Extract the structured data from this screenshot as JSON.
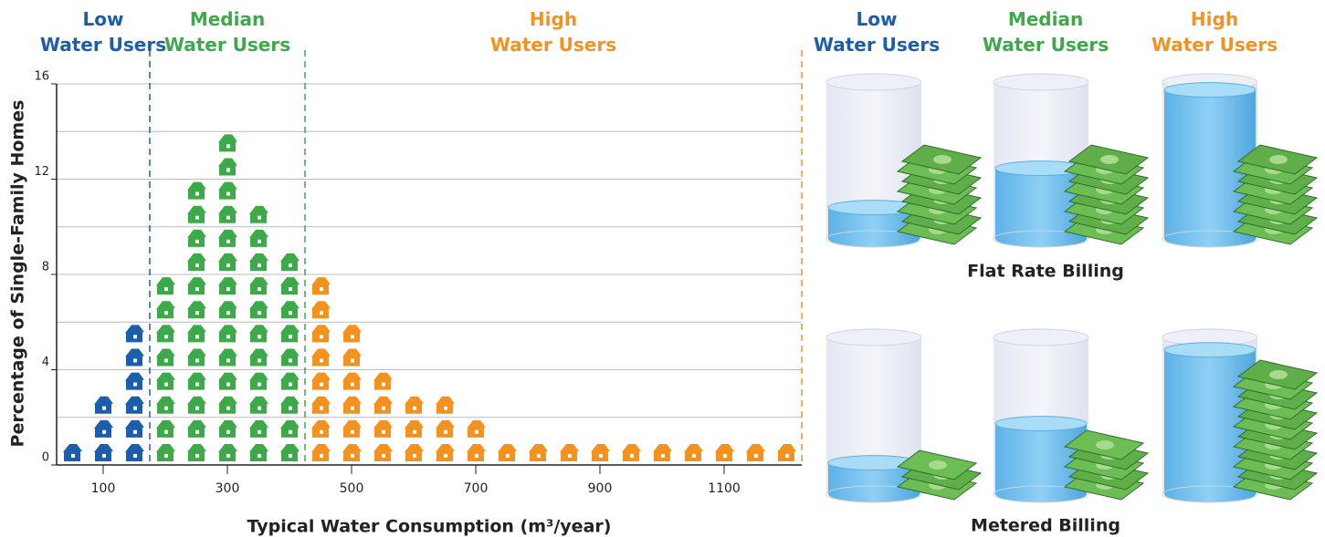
{
  "chart_data": {
    "type": "pictograph",
    "x_label": "Typical Water Consumption (m³/year)",
    "y_label": "Percentage of Single-Family Homes",
    "series": [
      {
        "name": "Low Water Users",
        "color": "#1b5eab",
        "x": [
          50,
          100,
          150
        ],
        "values": [
          1,
          3,
          6
        ],
        "upper_bound": 175
      },
      {
        "name": "Median Water Users",
        "color": "#3daa4a",
        "x": [
          200,
          250,
          300,
          350,
          400
        ],
        "values": [
          8,
          12,
          14,
          11,
          9
        ],
        "upper_bound": 425
      },
      {
        "name": "High Water Users",
        "color": "#f5921e",
        "x": [
          450,
          500,
          550,
          600,
          650,
          700,
          750,
          800,
          850,
          900,
          950,
          1000,
          1050,
          1100,
          1150,
          1200
        ],
        "values": [
          8,
          6,
          4,
          3,
          3,
          2,
          1,
          1,
          1,
          1,
          1,
          1,
          1,
          1,
          1,
          1
        ],
        "upper_bound": 1225
      }
    ],
    "xlim": [
      25,
      1225
    ],
    "xticks": [
      100,
      300,
      500,
      700,
      900,
      1100
    ],
    "ylim": [
      0,
      16
    ],
    "yticks": [
      0,
      4,
      8,
      12,
      16
    ],
    "ygrid": [
      2,
      4,
      6,
      8,
      10,
      12,
      14,
      16
    ]
  },
  "billing": {
    "rows": [
      {
        "label": "Flat Rate Billing",
        "fills": [
          20,
          45,
          95
        ],
        "bills": [
          8,
          8,
          8
        ]
      },
      {
        "label": "Metered Billing",
        "fills": [
          20,
          45,
          92
        ],
        "bills": [
          3,
          5,
          12
        ]
      }
    ]
  }
}
